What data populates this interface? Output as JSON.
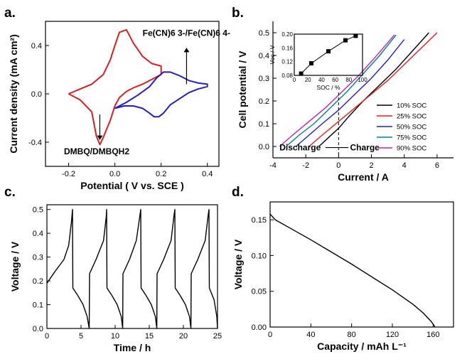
{
  "chart_data": [
    {
      "panel": "a.",
      "type": "line",
      "xlabel": "Potential ( V vs. SCE )",
      "ylabel": "Current density (mA cm²)",
      "xlim": [
        -0.3,
        0.45
      ],
      "ylim": [
        -0.6,
        0.6
      ],
      "xticks": [
        "-0.2",
        "0.0",
        "0.2",
        "0.4"
      ],
      "yticks": [
        "-0.4",
        "0.0",
        "0.4"
      ],
      "annotations": {
        "right": "Fe(CN)6 3-/Fe(CN)6 4-",
        "left": "DMBQ/DMBQH2"
      },
      "series": [
        {
          "color": "#d62020",
          "x": [
            -0.2,
            -0.15,
            -0.1,
            -0.05,
            -0.02,
            0.0,
            0.02,
            0.05,
            0.08,
            0.12,
            0.16,
            0.2,
            0.2,
            0.16,
            0.12,
            0.08,
            0.05,
            0.02,
            0.0,
            -0.02,
            -0.05,
            -0.065,
            -0.08,
            -0.1,
            -0.15,
            -0.2
          ],
          "y": [
            0.0,
            0.04,
            0.08,
            0.16,
            0.28,
            0.4,
            0.51,
            0.53,
            0.42,
            0.31,
            0.25,
            0.23,
            0.16,
            0.12,
            0.08,
            0.05,
            0.02,
            -0.03,
            -0.1,
            -0.22,
            -0.36,
            -0.42,
            -0.35,
            -0.15,
            -0.05,
            0.0
          ]
        },
        {
          "color": "#2020c0",
          "x": [
            0.0,
            0.05,
            0.1,
            0.15,
            0.18,
            0.21,
            0.24,
            0.28,
            0.32,
            0.36,
            0.4,
            0.4,
            0.36,
            0.32,
            0.28,
            0.24,
            0.21,
            0.19,
            0.17,
            0.15,
            0.12,
            0.08,
            0.04,
            0.0
          ],
          "y": [
            -0.12,
            -0.07,
            -0.01,
            0.06,
            0.13,
            0.18,
            0.18,
            0.15,
            0.11,
            0.09,
            0.08,
            0.06,
            0.04,
            0.01,
            -0.04,
            -0.09,
            -0.16,
            -0.19,
            -0.19,
            -0.16,
            -0.12,
            -0.1,
            -0.1,
            -0.12
          ]
        }
      ]
    },
    {
      "panel": "b.",
      "type": "line",
      "xlabel": "Current / A",
      "ylabel": "Cell potential / V",
      "xlim": [
        -4,
        7
      ],
      "ylim": [
        -0.05,
        0.55
      ],
      "xticks": [
        "-4",
        "-2",
        "0",
        "2",
        "4",
        "6"
      ],
      "yticks": [
        "0.0",
        "0.1",
        "0.2",
        "0.3",
        "0.4",
        "0.5"
      ],
      "annotations": {
        "left": "Discharge",
        "right": "Charge"
      },
      "legend": {
        "position": "bottom-right"
      },
      "series": [
        {
          "name": "10% SOC",
          "color": "#000000",
          "x": [
            -1.2,
            -0.6,
            0,
            0.6,
            1.5,
            2.5,
            3.5,
            4.5,
            5.5
          ],
          "y": [
            0.0,
            0.04,
            0.08,
            0.13,
            0.2,
            0.27,
            0.34,
            0.42,
            0.5
          ]
        },
        {
          "name": "25% SOC",
          "color": "#e02020",
          "x": [
            -1.8,
            -1.0,
            0,
            1.0,
            2.0,
            3.0,
            4.0,
            5.0,
            6.0
          ],
          "y": [
            0.0,
            0.05,
            0.11,
            0.17,
            0.23,
            0.29,
            0.36,
            0.43,
            0.5
          ]
        },
        {
          "name": "50% SOC",
          "color": "#2020c8",
          "x": [
            -2.6,
            -1.8,
            -1.0,
            0,
            1.0,
            2.0,
            3.0,
            4.0
          ],
          "y": [
            0.0,
            0.05,
            0.1,
            0.16,
            0.23,
            0.3,
            0.38,
            0.47
          ]
        },
        {
          "name": "75% SOC",
          "color": "#008080",
          "x": [
            -3.2,
            -2.4,
            -1.5,
            -0.5,
            0.5,
            1.5,
            2.5,
            3.5
          ],
          "y": [
            0.0,
            0.05,
            0.1,
            0.17,
            0.24,
            0.32,
            0.4,
            0.49
          ]
        },
        {
          "name": "90% SOC",
          "color": "#c020c0",
          "x": [
            -3.6,
            -2.8,
            -1.8,
            -0.8,
            0.2,
            1.2,
            2.2,
            3.4
          ],
          "y": [
            0.0,
            0.05,
            0.11,
            0.17,
            0.24,
            0.31,
            0.39,
            0.49
          ]
        }
      ],
      "inset": {
        "type": "line",
        "xlabel": "SOC / %",
        "ylabel": "Voc / V",
        "xlim": [
          0,
          100
        ],
        "ylim": [
          0.08,
          0.2
        ],
        "xticks": [
          "0",
          "20",
          "40",
          "60",
          "80",
          "100"
        ],
        "yticks": [
          "0.08",
          "0.12",
          "0.16",
          "0.20"
        ],
        "x": [
          10,
          25,
          50,
          75,
          90
        ],
        "y": [
          0.085,
          0.115,
          0.15,
          0.182,
          0.195
        ]
      }
    },
    {
      "panel": "c.",
      "type": "line",
      "xlabel": "Time / h",
      "ylabel": "Voltage / V",
      "xlim": [
        0,
        25
      ],
      "ylim": [
        0,
        0.52
      ],
      "xticks": [
        "0",
        "5",
        "10",
        "15",
        "20",
        "25"
      ],
      "yticks": [
        "0.0",
        "0.1",
        "0.2",
        "0.3",
        "0.4",
        "0.5"
      ],
      "series": [
        {
          "color": "#000000",
          "x": [
            0,
            1.2,
            2.5,
            3.2,
            3.6,
            3.75,
            3.8,
            4.5,
            5.3,
            5.9,
            6.2,
            6.25,
            7.2,
            8.3,
            8.7,
            8.75,
            8.8,
            9.5,
            10.3,
            10.9,
            11.1,
            11.15,
            12.1,
            13.1,
            13.6,
            13.75,
            13.8,
            14.5,
            15.3,
            15.9,
            16.1,
            16.15,
            17.1,
            18.2,
            18.6,
            18.75,
            18.8,
            19.5,
            20.3,
            20.9,
            21.1,
            21.15,
            22.1,
            23.2,
            23.6,
            23.75,
            23.8,
            24.5,
            24.9,
            25.0
          ],
          "y": [
            0.19,
            0.24,
            0.29,
            0.35,
            0.45,
            0.5,
            0.17,
            0.14,
            0.1,
            0.05,
            0.0,
            0.23,
            0.29,
            0.37,
            0.47,
            0.5,
            0.17,
            0.14,
            0.1,
            0.05,
            0.0,
            0.23,
            0.29,
            0.37,
            0.47,
            0.5,
            0.17,
            0.14,
            0.1,
            0.05,
            0.0,
            0.23,
            0.29,
            0.37,
            0.47,
            0.5,
            0.17,
            0.14,
            0.1,
            0.05,
            0.0,
            0.23,
            0.29,
            0.37,
            0.47,
            0.5,
            0.17,
            0.12,
            0.05,
            0.0
          ]
        }
      ]
    },
    {
      "panel": "d.",
      "type": "line",
      "xlabel": "Capacity / mAh L⁻¹",
      "ylabel": "Voltage / V",
      "xlim": [
        0,
        180
      ],
      "ylim": [
        0,
        0.175
      ],
      "xticks": [
        "0",
        "40",
        "80",
        "120",
        "160"
      ],
      "yticks": [
        "0.00",
        "0.05",
        "0.10",
        "0.15"
      ],
      "series": [
        {
          "color": "#000000",
          "x": [
            0,
            5,
            20,
            40,
            60,
            80,
            100,
            120,
            140,
            150,
            158,
            162
          ],
          "y": [
            0.158,
            0.15,
            0.138,
            0.122,
            0.105,
            0.088,
            0.07,
            0.052,
            0.032,
            0.02,
            0.008,
            0.0
          ]
        }
      ]
    }
  ]
}
